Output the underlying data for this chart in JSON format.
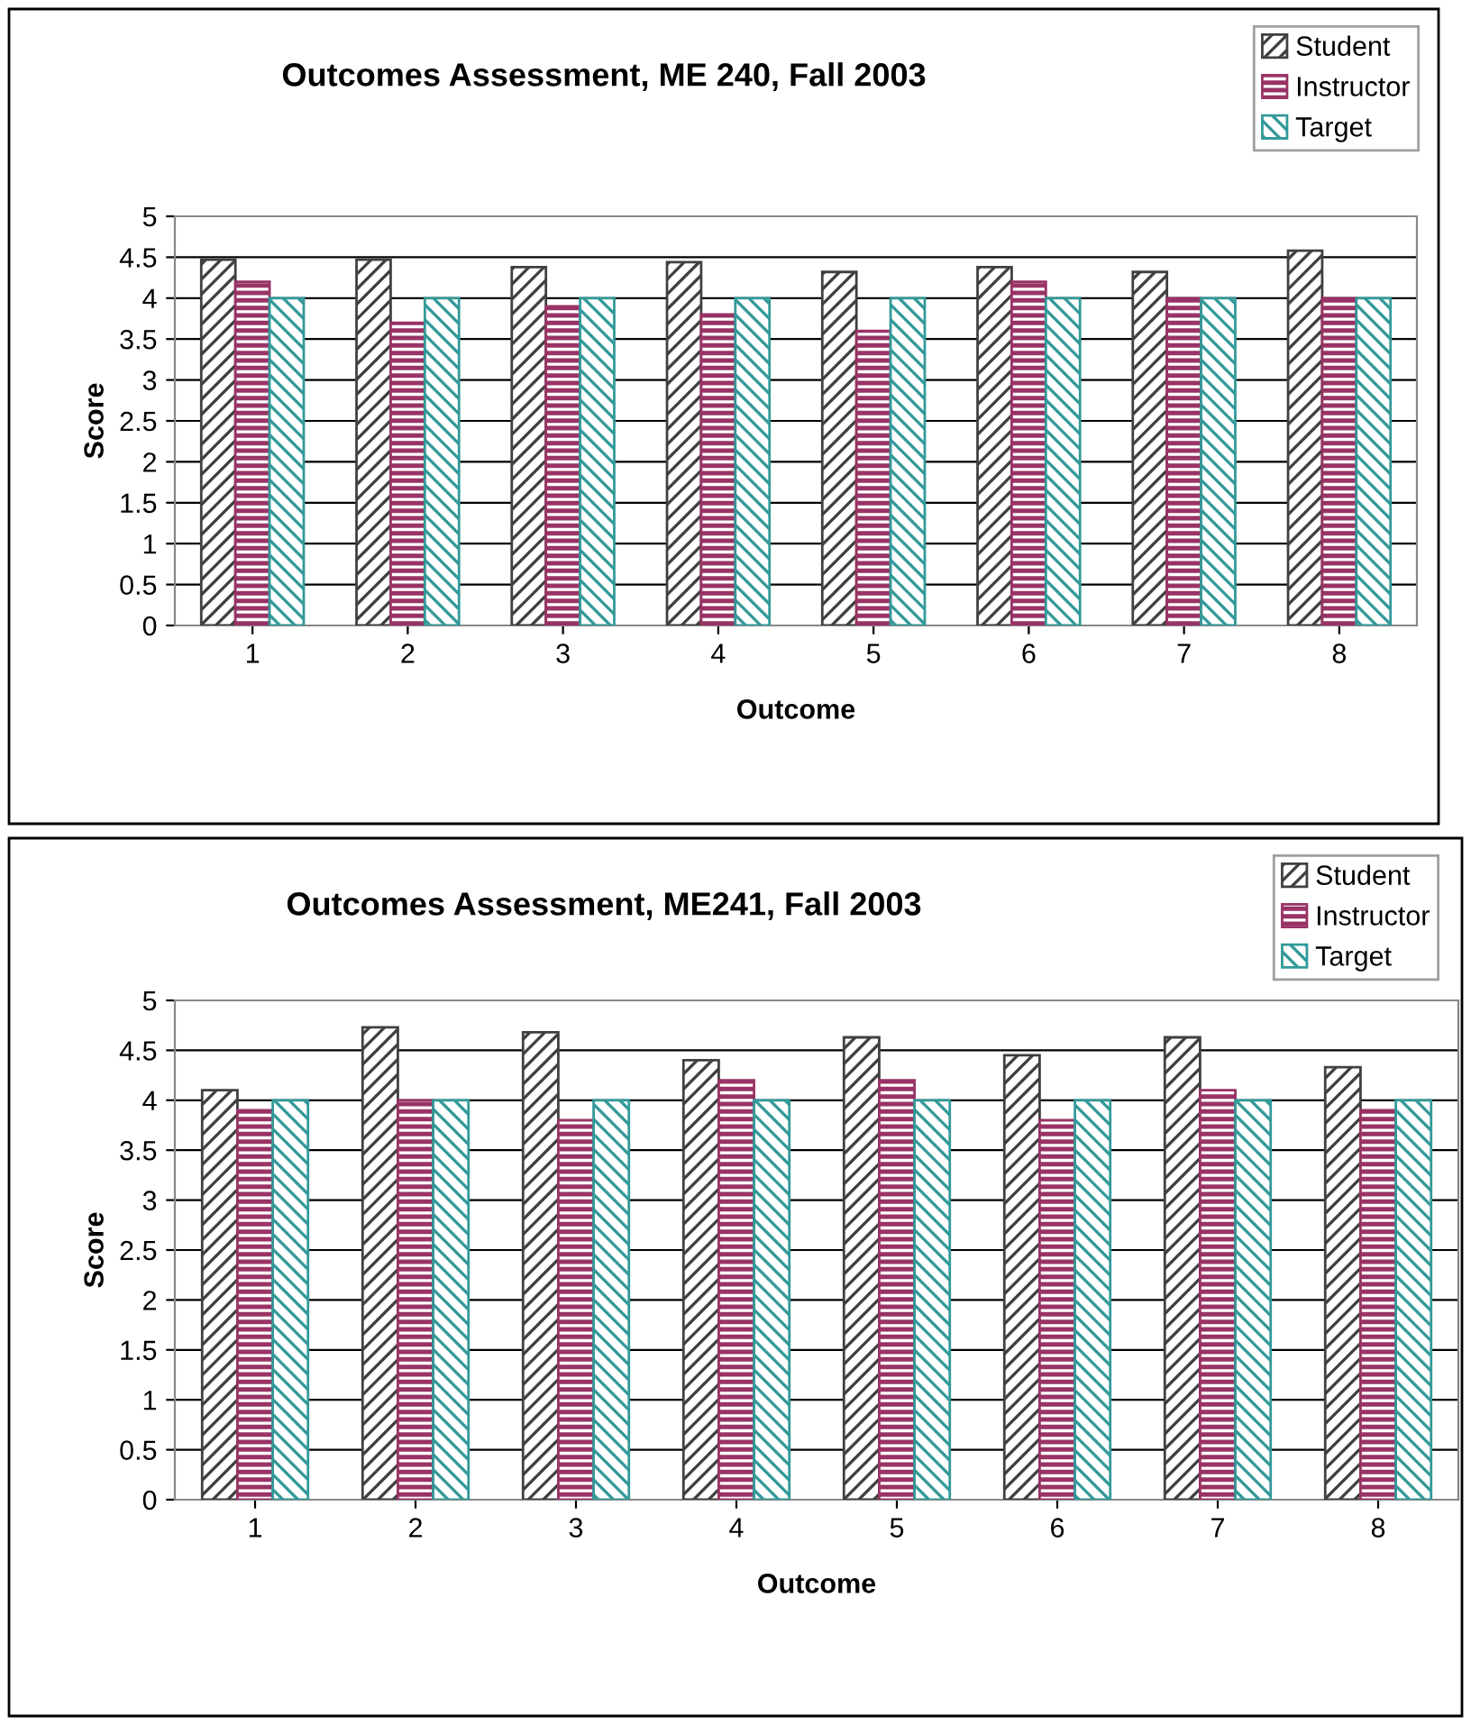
{
  "chart_data": [
    {
      "type": "bar",
      "title": "Outcomes Assessment, ME 240, Fall 2003",
      "xlabel": "Outcome",
      "ylabel": "Score",
      "categories": [
        "1",
        "2",
        "3",
        "4",
        "5",
        "6",
        "7",
        "8"
      ],
      "series": [
        {
          "name": "Student",
          "color": "#404040",
          "values": [
            4.47,
            4.47,
            4.38,
            4.44,
            4.32,
            4.38,
            4.32,
            4.58
          ]
        },
        {
          "name": "Instructor",
          "color": "#993366",
          "values": [
            4.2,
            3.7,
            3.9,
            3.8,
            3.6,
            4.2,
            4.0,
            4.0
          ]
        },
        {
          "name": "Target",
          "color": "#339999",
          "values": [
            4,
            4,
            4,
            4,
            4,
            4,
            4,
            4
          ]
        }
      ],
      "ylim": [
        0,
        5
      ],
      "yticks": [
        0,
        0.5,
        1,
        1.5,
        2,
        2.5,
        3,
        3.5,
        4,
        4.5,
        5
      ],
      "grid": "y",
      "legend": "top right"
    },
    {
      "type": "bar",
      "title": "Outcomes Assessment, ME241, Fall 2003",
      "xlabel": "Outcome",
      "ylabel": "Score",
      "categories": [
        "1",
        "2",
        "3",
        "4",
        "5",
        "6",
        "7",
        "8"
      ],
      "series": [
        {
          "name": "Student",
          "color": "#404040",
          "values": [
            4.1,
            4.73,
            4.68,
            4.4,
            4.63,
            4.45,
            4.63,
            4.33
          ]
        },
        {
          "name": "Instructor",
          "color": "#993366",
          "values": [
            3.9,
            4.0,
            3.8,
            4.2,
            4.2,
            3.8,
            4.1,
            3.9
          ]
        },
        {
          "name": "Target",
          "color": "#339999",
          "values": [
            4,
            4,
            4,
            4,
            4,
            4,
            4,
            4
          ]
        }
      ],
      "ylim": [
        0,
        5
      ],
      "yticks": [
        0,
        0.5,
        1,
        1.5,
        2,
        2.5,
        3,
        3.5,
        4,
        4.5,
        5
      ],
      "grid": "y",
      "legend": "top right"
    }
  ]
}
